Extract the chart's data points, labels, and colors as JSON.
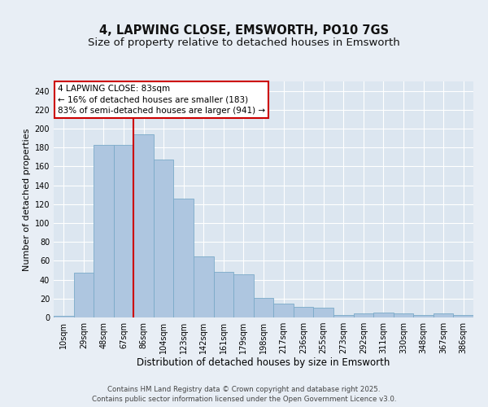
{
  "title": "4, LAPWING CLOSE, EMSWORTH, PO10 7GS",
  "subtitle": "Size of property relative to detached houses in Emsworth",
  "xlabel": "Distribution of detached houses by size in Emsworth",
  "ylabel": "Number of detached properties",
  "categories": [
    "10sqm",
    "29sqm",
    "48sqm",
    "67sqm",
    "86sqm",
    "104sqm",
    "123sqm",
    "142sqm",
    "161sqm",
    "179sqm",
    "198sqm",
    "217sqm",
    "236sqm",
    "255sqm",
    "273sqm",
    "292sqm",
    "311sqm",
    "330sqm",
    "348sqm",
    "367sqm",
    "386sqm"
  ],
  "bar_heights": [
    2,
    47,
    183,
    183,
    194,
    167,
    126,
    65,
    48,
    46,
    21,
    15,
    11,
    10,
    3,
    4,
    5,
    4,
    3,
    4,
    3
  ],
  "bar_color": "#aec6e0",
  "bar_edge_color": "#7aaac8",
  "bg_color": "#dce6f0",
  "fig_bg_color": "#e8eef5",
  "annotation_text": "4 LAPWING CLOSE: 83sqm\n← 16% of detached houses are smaller (183)\n83% of semi-detached houses are larger (941) →",
  "annotation_box_facecolor": "#ffffff",
  "annotation_box_edgecolor": "#cc0000",
  "vline_category_index": 3,
  "vline_color": "#cc0000",
  "ylim": [
    0,
    250
  ],
  "yticks": [
    0,
    20,
    40,
    60,
    80,
    100,
    120,
    140,
    160,
    180,
    200,
    220,
    240
  ],
  "footer": "Contains HM Land Registry data © Crown copyright and database right 2025.\nContains public sector information licensed under the Open Government Licence v3.0.",
  "title_fontsize": 10.5,
  "subtitle_fontsize": 9.5,
  "xlabel_fontsize": 8.5,
  "ylabel_fontsize": 8,
  "tick_fontsize": 7,
  "annotation_fontsize": 7.5
}
